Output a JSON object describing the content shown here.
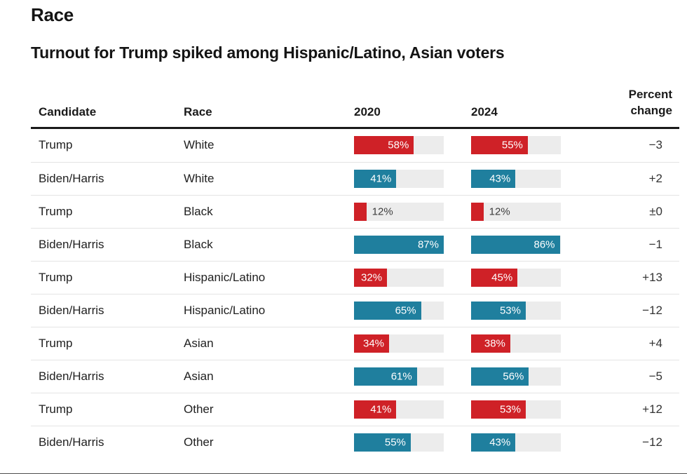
{
  "page": {
    "section_title": "Race",
    "headline": "Turnout for Trump spiked among Hispanic/Latino, Asian voters"
  },
  "colors": {
    "trump_red": "#cf2127",
    "biden_teal": "#1f7f9e",
    "bar_track_gray": "#ececec",
    "header_rule_black": "#1a1a1a",
    "row_divider_gray": "#e4e4e4"
  },
  "table": {
    "columns": {
      "candidate": "Candidate",
      "race": "Race",
      "y2020": "2020",
      "y2024": "2024",
      "change_line1": "Percent",
      "change_line2": "change"
    },
    "rows": [
      {
        "candidate": "Trump",
        "race": "White",
        "pct2020": "58%",
        "pct2024": "55%",
        "change": "−3",
        "bar_color": "#cf2127"
      },
      {
        "candidate": "Biden/Harris",
        "race": "White",
        "pct2020": "41%",
        "pct2024": "43%",
        "change": "+2",
        "bar_color": "#1f7f9e"
      },
      {
        "candidate": "Trump",
        "race": "Black",
        "pct2020": "12%",
        "pct2024": "12%",
        "change": "±0",
        "bar_color": "#cf2127"
      },
      {
        "candidate": "Biden/Harris",
        "race": "Black",
        "pct2020": "87%",
        "pct2024": "86%",
        "change": "−1",
        "bar_color": "#1f7f9e"
      },
      {
        "candidate": "Trump",
        "race": "Hispanic/Latino",
        "pct2020": "32%",
        "pct2024": "45%",
        "change": "+13",
        "bar_color": "#cf2127"
      },
      {
        "candidate": "Biden/Harris",
        "race": "Hispanic/Latino",
        "pct2020": "65%",
        "pct2024": "53%",
        "change": "−12",
        "bar_color": "#1f7f9e"
      },
      {
        "candidate": "Trump",
        "race": "Asian",
        "pct2020": "34%",
        "pct2024": "38%",
        "change": "+4",
        "bar_color": "#cf2127"
      },
      {
        "candidate": "Biden/Harris",
        "race": "Asian",
        "pct2020": "61%",
        "pct2024": "56%",
        "change": "−5",
        "bar_color": "#1f7f9e"
      },
      {
        "candidate": "Trump",
        "race": "Other",
        "pct2020": "41%",
        "pct2024": "53%",
        "change": "+12",
        "bar_color": "#cf2127"
      },
      {
        "candidate": "Biden/Harris",
        "race": "Other",
        "pct2020": "55%",
        "pct2024": "43%",
        "change": "−12",
        "bar_color": "#1f7f9e"
      }
    ]
  },
  "chart_data": {
    "type": "bar",
    "title": "Turnout for Trump spiked among Hispanic/Latino, Asian voters",
    "section": "Race",
    "unit": "%",
    "columns": [
      "2020",
      "2024"
    ],
    "scale_max": 87,
    "small_value_label_threshold": 20,
    "rows": [
      {
        "candidate": "Trump",
        "race": "White",
        "y2020": 58,
        "y2024": 55,
        "percent_change": -3
      },
      {
        "candidate": "Biden/Harris",
        "race": "White",
        "y2020": 41,
        "y2024": 43,
        "percent_change": 2
      },
      {
        "candidate": "Trump",
        "race": "Black",
        "y2020": 12,
        "y2024": 12,
        "percent_change": 0
      },
      {
        "candidate": "Biden/Harris",
        "race": "Black",
        "y2020": 87,
        "y2024": 86,
        "percent_change": -1
      },
      {
        "candidate": "Trump",
        "race": "Hispanic/Latino",
        "y2020": 32,
        "y2024": 45,
        "percent_change": 13
      },
      {
        "candidate": "Biden/Harris",
        "race": "Hispanic/Latino",
        "y2020": 65,
        "y2024": 53,
        "percent_change": -12
      },
      {
        "candidate": "Trump",
        "race": "Asian",
        "y2020": 34,
        "y2024": 38,
        "percent_change": 4
      },
      {
        "candidate": "Biden/Harris",
        "race": "Asian",
        "y2020": 61,
        "y2024": 56,
        "percent_change": -5
      },
      {
        "candidate": "Trump",
        "race": "Other",
        "y2020": 41,
        "y2024": 53,
        "percent_change": 12
      },
      {
        "candidate": "Biden/Harris",
        "race": "Other",
        "y2020": 55,
        "y2024": 43,
        "percent_change": -12
      }
    ]
  }
}
